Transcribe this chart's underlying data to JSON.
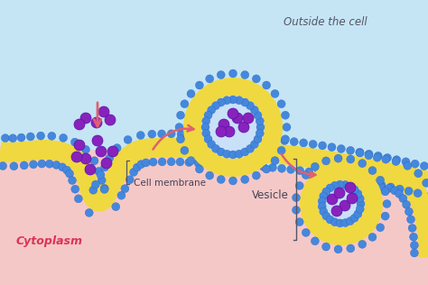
{
  "bg_outside_color": "#c5e5f5",
  "bg_cytoplasm_color": "#f5c8c8",
  "membrane_yellow": "#f0d840",
  "membrane_blue": "#4488dd",
  "membrane_blue_edge": "#2255aa",
  "vesicle_inner_color": "#c8e0f8",
  "molecule_color": "#8822bb",
  "molecule_edge": "#5511aa",
  "arrow_color": "#e06070",
  "label_cell_membrane": "Cell membrane",
  "label_cytoplasm": "Cytoplasm",
  "label_outside": "Outside the cell",
  "label_vesicle": "Vesicle",
  "text_color_cytoplasm": "#dd3355",
  "text_color_outside": "#555566",
  "text_color_labels": "#444455"
}
